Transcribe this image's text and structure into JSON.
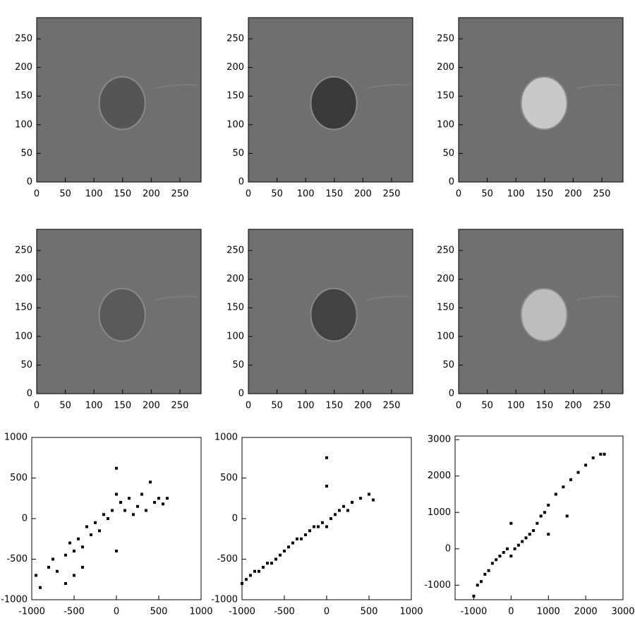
{
  "chart_data": [
    {
      "type": "image",
      "color": "#6f6f6f",
      "feature_color": "#555555",
      "xlim": [
        0,
        287
      ],
      "ylim": [
        0,
        287
      ],
      "xticks": [
        0,
        50,
        100,
        150,
        200,
        250
      ],
      "yticks": [
        0,
        50,
        100,
        150,
        200,
        250
      ]
    },
    {
      "type": "image",
      "color": "#6f6f6f",
      "feature_color": "#3a3a3a",
      "xlim": [
        0,
        287
      ],
      "ylim": [
        0,
        287
      ],
      "xticks": [
        0,
        50,
        100,
        150,
        200,
        250
      ],
      "yticks": [
        0,
        50,
        100,
        150,
        200,
        250
      ]
    },
    {
      "type": "image",
      "color": "#6f6f6f",
      "feature_color": "#c8c8c8",
      "xlim": [
        0,
        287
      ],
      "ylim": [
        0,
        287
      ],
      "xticks": [
        0,
        50,
        100,
        150,
        200,
        250
      ],
      "yticks": [
        0,
        50,
        100,
        150,
        200,
        250
      ]
    },
    {
      "type": "image",
      "color": "#707070",
      "feature_color": "#5a5a5a",
      "xlim": [
        0,
        287
      ],
      "ylim": [
        0,
        287
      ],
      "xticks": [
        0,
        50,
        100,
        150,
        200,
        250
      ],
      "yticks": [
        0,
        50,
        100,
        150,
        200,
        250
      ]
    },
    {
      "type": "image",
      "color": "#707070",
      "feature_color": "#424242",
      "xlim": [
        0,
        287
      ],
      "ylim": [
        0,
        287
      ],
      "xticks": [
        0,
        50,
        100,
        150,
        200,
        250
      ],
      "yticks": [
        0,
        50,
        100,
        150,
        200,
        250
      ]
    },
    {
      "type": "image",
      "color": "#707070",
      "feature_color": "#bdbdbd",
      "xlim": [
        0,
        287
      ],
      "ylim": [
        0,
        287
      ],
      "xticks": [
        0,
        50,
        100,
        150,
        200,
        250
      ],
      "yticks": [
        0,
        50,
        100,
        150,
        200,
        250
      ]
    },
    {
      "type": "scatter",
      "color": "#000000",
      "xlim": [
        -1000,
        1000
      ],
      "ylim": [
        -1000,
        1000
      ],
      "xticks": [
        -1000,
        -500,
        0,
        500,
        1000
      ],
      "yticks": [
        -1000,
        -500,
        0,
        500,
        1000
      ],
      "x": [
        -950,
        -900,
        -800,
        -750,
        -700,
        -600,
        -550,
        -500,
        -450,
        -400,
        -350,
        -300,
        -250,
        -200,
        -150,
        -100,
        -50,
        0,
        0,
        0,
        50,
        100,
        150,
        200,
        250,
        300,
        350,
        400,
        450,
        500,
        550,
        600,
        -600,
        -500,
        -400
      ],
      "y": [
        -700,
        -850,
        -600,
        -500,
        -650,
        -450,
        -300,
        -400,
        -250,
        -350,
        -100,
        -200,
        -50,
        -150,
        50,
        0,
        100,
        620,
        300,
        -400,
        200,
        100,
        250,
        50,
        150,
        300,
        100,
        450,
        200,
        250,
        180,
        250,
        -800,
        -700,
        -600
      ]
    },
    {
      "type": "scatter",
      "color": "#000000",
      "xlim": [
        -1000,
        1000
      ],
      "ylim": [
        -1000,
        1000
      ],
      "xticks": [
        -1000,
        -500,
        0,
        500,
        1000
      ],
      "yticks": [
        -1000,
        -500,
        0,
        500,
        1000
      ],
      "x": [
        -1000,
        -950,
        -900,
        -850,
        -800,
        -750,
        -700,
        -650,
        -600,
        -550,
        -500,
        -450,
        -400,
        -350,
        -300,
        -250,
        -200,
        -150,
        -100,
        -50,
        0,
        0,
        0,
        50,
        100,
        150,
        200,
        250,
        300,
        400,
        500,
        550
      ],
      "y": [
        -800,
        -750,
        -700,
        -650,
        -650,
        -600,
        -550,
        -550,
        -500,
        -450,
        -400,
        -350,
        -300,
        -250,
        -250,
        -200,
        -150,
        -100,
        -100,
        -50,
        750,
        400,
        -100,
        0,
        50,
        100,
        150,
        100,
        200,
        250,
        300,
        230
      ]
    },
    {
      "type": "scatter",
      "color": "#000000",
      "xlim": [
        -1500,
        3000
      ],
      "ylim": [
        -1400,
        3100
      ],
      "xticks": [
        -1000,
        0,
        1000,
        2000,
        3000
      ],
      "yticks": [
        -1000,
        0,
        1000,
        2000,
        3000
      ],
      "x": [
        -1000,
        -900,
        -800,
        -700,
        -600,
        -500,
        -400,
        -300,
        -200,
        -100,
        0,
        0,
        100,
        200,
        300,
        400,
        500,
        600,
        700,
        800,
        900,
        1000,
        1200,
        1400,
        1600,
        1800,
        2000,
        2200,
        2400,
        2500,
        1500,
        1000
      ],
      "y": [
        -1300,
        -1000,
        -900,
        -700,
        -600,
        -400,
        -300,
        -200,
        -100,
        0,
        700,
        -200,
        0,
        100,
        200,
        300,
        400,
        500,
        700,
        900,
        1000,
        1200,
        1500,
        1700,
        1900,
        2100,
        2300,
        2500,
        2600,
        2600,
        900,
        400
      ]
    }
  ]
}
